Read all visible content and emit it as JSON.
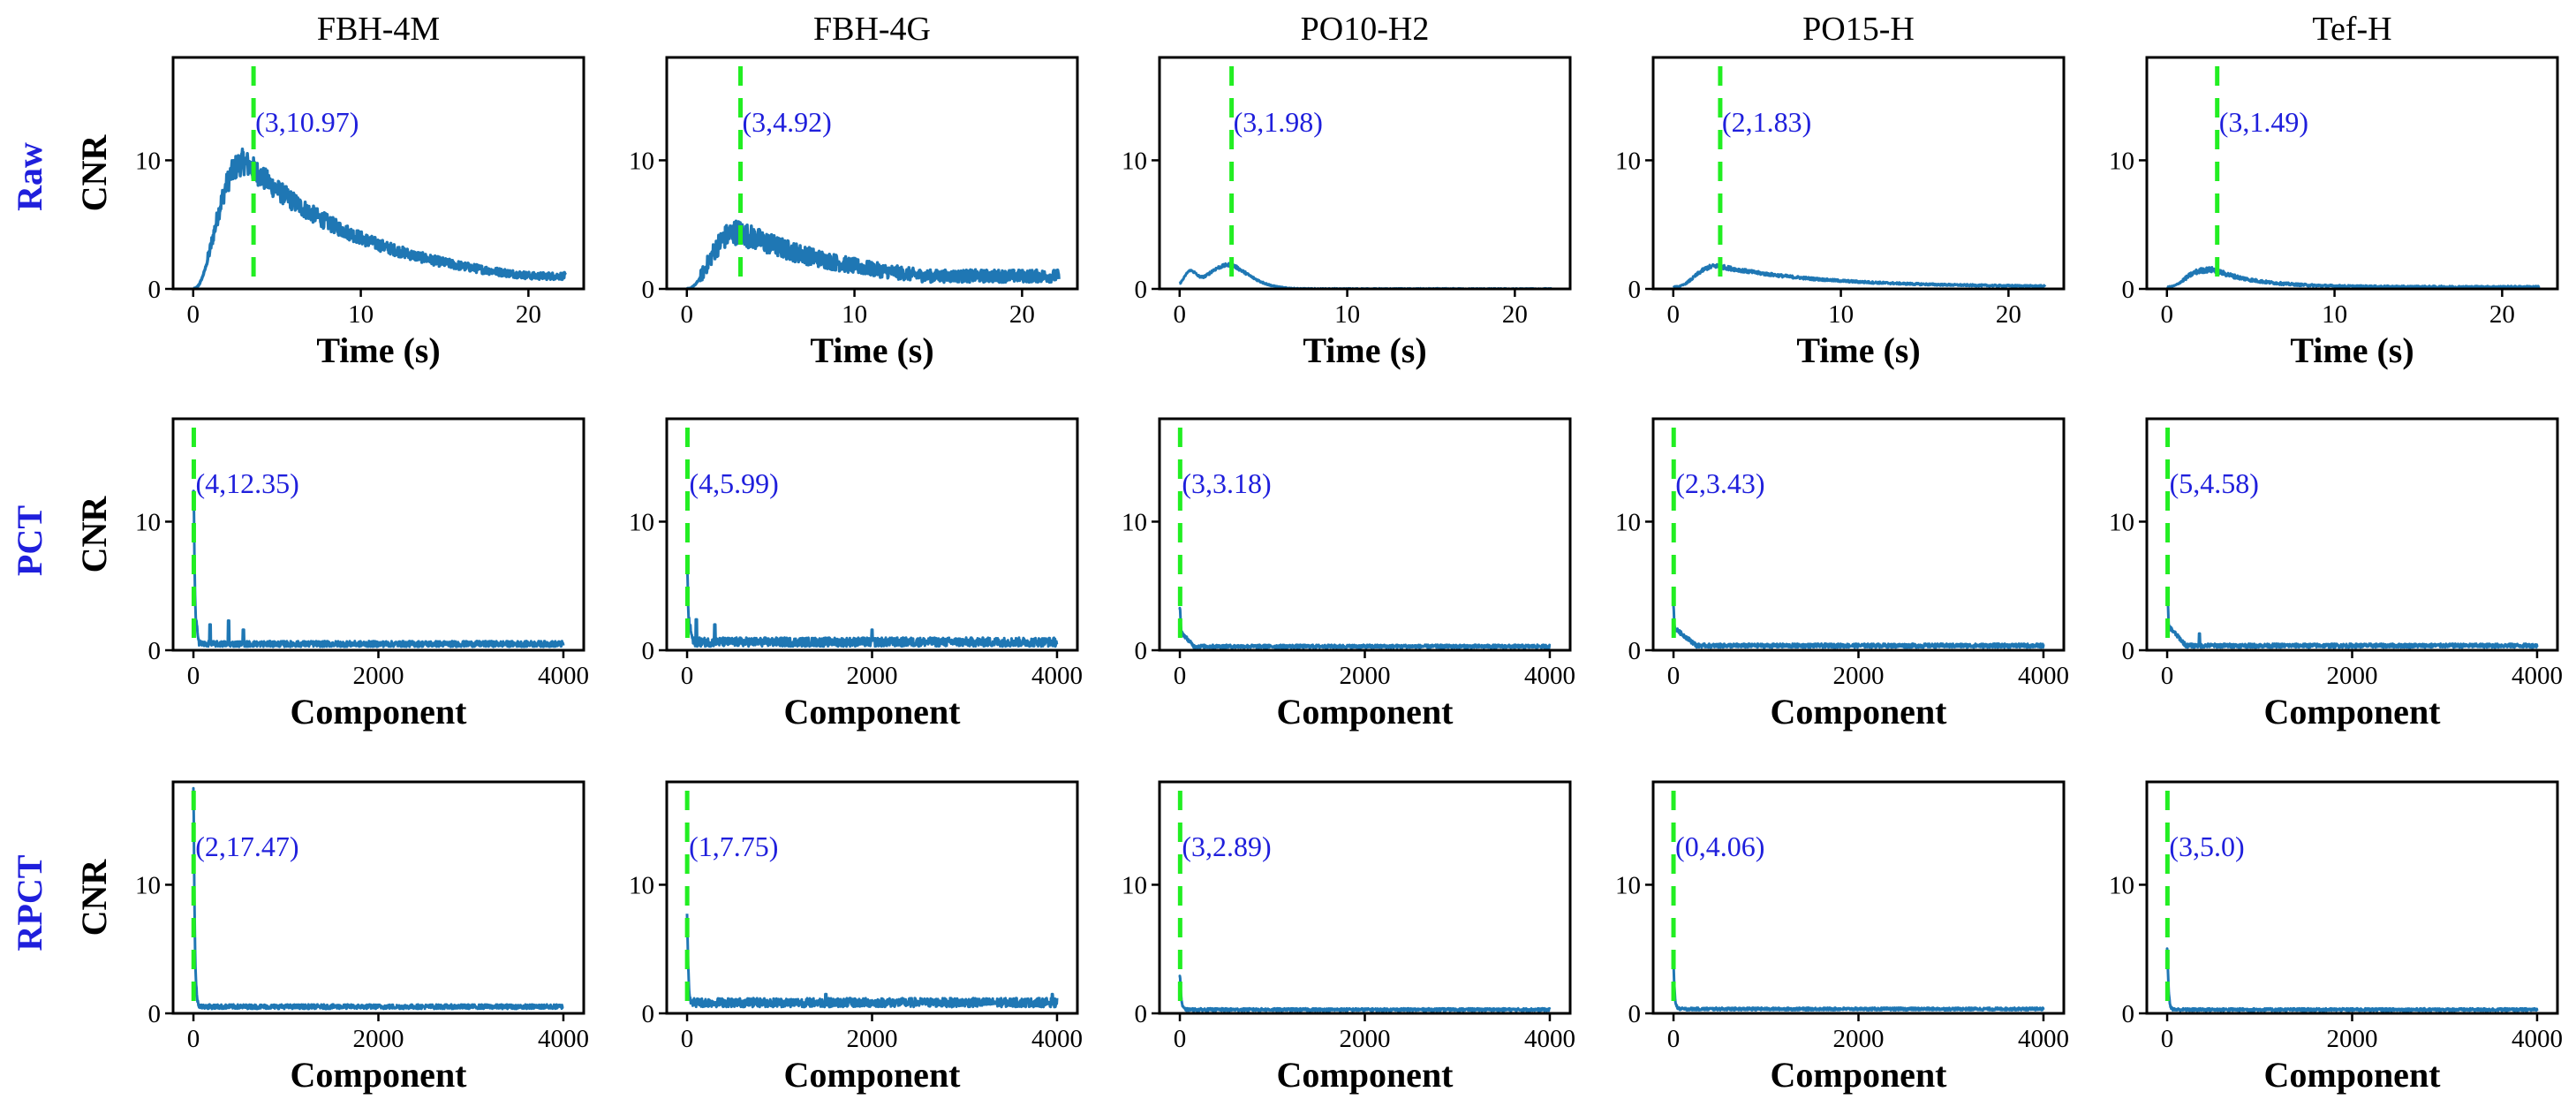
{
  "figure": {
    "column_titles": [
      "FBH-4M",
      "FBH-4G",
      "PO10-H2",
      "PO15-H",
      "Tef-H"
    ],
    "row_labels": [
      "Raw",
      "PCT",
      "RPCT"
    ],
    "ylabel": "CNR",
    "colors": {
      "trace": "#1f77b4",
      "marker": "#22ee22",
      "row_label": "#1f1fdc",
      "annotation": "#1f1fdc"
    }
  },
  "chart_data": [
    {
      "type": "line",
      "row": 0,
      "col": 0,
      "title": "FBH-4M",
      "row_label": "Raw",
      "xlabel": "Time (s)",
      "ylabel": "CNR",
      "xlim": [
        -1.2,
        23.3
      ],
      "ylim": [
        0,
        18
      ],
      "xticks": [
        0,
        10,
        20
      ],
      "xtick_labels": [
        "0",
        "10",
        "20"
      ],
      "yticks": [
        0,
        10
      ],
      "ytick_labels": [
        "0",
        "10"
      ],
      "marker_x": 3.6,
      "annotation": "(3,10.97)",
      "peak": 10.97,
      "shape": "slow",
      "noise": 0.9,
      "noise_tail": 0.4,
      "onset": 0.3,
      "tail_end": 1.0
    },
    {
      "type": "line",
      "row": 0,
      "col": 1,
      "title": "FBH-4G",
      "row_label": "Raw",
      "xlabel": "Time (s)",
      "ylabel": "CNR",
      "xlim": [
        -1.2,
        23.3
      ],
      "ylim": [
        0,
        18
      ],
      "xticks": [
        0,
        10,
        20
      ],
      "xtick_labels": [
        "0",
        "10",
        "20"
      ],
      "yticks": [
        0,
        10
      ],
      "ytick_labels": [
        "0",
        "10"
      ],
      "marker_x": 3.2,
      "annotation": "(3,4.92)",
      "peak": 4.92,
      "shape": "slow",
      "noise": 0.7,
      "noise_tail": 0.7,
      "onset": 0.3,
      "tail_end": 1.0
    },
    {
      "type": "line",
      "row": 0,
      "col": 2,
      "title": "PO10-H2",
      "row_label": "Raw",
      "xlabel": "Time (s)",
      "ylabel": "CNR",
      "xlim": [
        -1.2,
        23.3
      ],
      "ylim": [
        0,
        18
      ],
      "xticks": [
        0,
        10,
        20
      ],
      "xtick_labels": [
        "0",
        "10",
        "20"
      ],
      "yticks": [
        0,
        10
      ],
      "ytick_labels": [
        "0",
        "10"
      ],
      "marker_x": 3.1,
      "annotation": "(3,1.98)",
      "peak": 1.98,
      "shape": "fast_dip",
      "noise": 0.1,
      "noise_tail": 0.08,
      "onset": 0.0,
      "tail_end": 0.1
    },
    {
      "type": "line",
      "row": 0,
      "col": 3,
      "title": "PO15-H",
      "row_label": "Raw",
      "xlabel": "Time (s)",
      "ylabel": "CNR",
      "xlim": [
        -1.2,
        23.3
      ],
      "ylim": [
        0,
        18
      ],
      "xticks": [
        0,
        10,
        20
      ],
      "xtick_labels": [
        "0",
        "10",
        "20"
      ],
      "yticks": [
        0,
        10
      ],
      "ytick_labels": [
        "0",
        "10"
      ],
      "marker_x": 2.8,
      "annotation": "(2,1.83)",
      "peak": 1.83,
      "shape": "medium",
      "noise": 0.12,
      "noise_tail": 0.1,
      "onset": 0.0,
      "tail_end": 0.2
    },
    {
      "type": "line",
      "row": 0,
      "col": 4,
      "title": "Tef-H",
      "row_label": "Raw",
      "xlabel": "Time (s)",
      "ylabel": "CNR",
      "xlim": [
        -1.2,
        23.3
      ],
      "ylim": [
        0,
        18
      ],
      "xticks": [
        0,
        10,
        20
      ],
      "xtick_labels": [
        "0",
        "10",
        "20"
      ],
      "yticks": [
        0,
        10
      ],
      "ytick_labels": [
        "0",
        "10"
      ],
      "marker_x": 3.0,
      "annotation": "(3,1.49)",
      "peak": 1.49,
      "shape": "fast",
      "noise": 0.15,
      "noise_tail": 0.12,
      "onset": 0.0,
      "tail_end": 0.25
    },
    {
      "type": "line",
      "row": 1,
      "col": 0,
      "title": "FBH-4M",
      "row_label": "PCT",
      "xlabel": "Component",
      "ylabel": "CNR",
      "xlim": [
        -220,
        4220
      ],
      "ylim": [
        0,
        18
      ],
      "xticks": [
        0,
        2000,
        4000
      ],
      "xtick_labels": [
        "0",
        "2000",
        "4000"
      ],
      "yticks": [
        0,
        10
      ],
      "ytick_labels": [
        "0",
        "10"
      ],
      "marker_x": 4,
      "annotation": "(4,12.35)",
      "peak": 12.35,
      "decay": 3.0,
      "decay_len": 60,
      "noise": 0.45,
      "baseline": 0.4,
      "spikes": [
        [
          180,
          2.0
        ],
        [
          380,
          2.3
        ],
        [
          540,
          1.6
        ]
      ]
    },
    {
      "type": "line",
      "row": 1,
      "col": 1,
      "title": "FBH-4G",
      "row_label": "PCT",
      "xlabel": "Component",
      "ylabel": "CNR",
      "xlim": [
        -220,
        4220
      ],
      "ylim": [
        0,
        18
      ],
      "xticks": [
        0,
        2000,
        4000
      ],
      "xtick_labels": [
        "0",
        "2000",
        "4000"
      ],
      "yticks": [
        0,
        10
      ],
      "ytick_labels": [
        "0",
        "10"
      ],
      "marker_x": 4,
      "annotation": "(4,5.99)",
      "peak": 5.99,
      "decay": 2.2,
      "decay_len": 60,
      "noise": 0.7,
      "baseline": 0.5,
      "spikes": [
        [
          100,
          2.4
        ],
        [
          300,
          2.0
        ],
        [
          2000,
          1.6
        ]
      ]
    },
    {
      "type": "line",
      "row": 1,
      "col": 2,
      "title": "PO10-H2",
      "row_label": "PCT",
      "xlabel": "Component",
      "ylabel": "CNR",
      "xlim": [
        -220,
        4220
      ],
      "ylim": [
        0,
        18
      ],
      "xticks": [
        0,
        2000,
        4000
      ],
      "xtick_labels": [
        "0",
        "2000",
        "4000"
      ],
      "yticks": [
        0,
        10
      ],
      "ytick_labels": [
        "0",
        "10"
      ],
      "marker_x": 3,
      "annotation": "(3,3.18)",
      "peak": 3.18,
      "decay": 1.2,
      "decay_len": 150,
      "noise": 0.25,
      "baseline": 0.25,
      "spikes": []
    },
    {
      "type": "line",
      "row": 1,
      "col": 3,
      "title": "PO15-H",
      "row_label": "PCT",
      "xlabel": "Component",
      "ylabel": "CNR",
      "xlim": [
        -220,
        4220
      ],
      "ylim": [
        0,
        18
      ],
      "xticks": [
        0,
        2000,
        4000
      ],
      "xtick_labels": [
        "0",
        "2000",
        "4000"
      ],
      "yticks": [
        0,
        10
      ],
      "ytick_labels": [
        "0",
        "10"
      ],
      "marker_x": 2,
      "annotation": "(2,3.43)",
      "peak": 3.43,
      "decay": 1.4,
      "decay_len": 250,
      "noise": 0.3,
      "baseline": 0.3,
      "spikes": []
    },
    {
      "type": "line",
      "row": 1,
      "col": 4,
      "title": "Tef-H",
      "row_label": "PCT",
      "xlabel": "Component",
      "ylabel": "CNR",
      "xlim": [
        -220,
        4220
      ],
      "ylim": [
        0,
        18
      ],
      "xticks": [
        0,
        2000,
        4000
      ],
      "xtick_labels": [
        "0",
        "2000",
        "4000"
      ],
      "yticks": [
        0,
        10
      ],
      "ytick_labels": [
        "0",
        "10"
      ],
      "marker_x": 5,
      "annotation": "(5,4.58)",
      "peak": 4.58,
      "decay": 1.6,
      "decay_len": 200,
      "noise": 0.3,
      "baseline": 0.3,
      "spikes": [
        [
          350,
          1.3
        ]
      ]
    },
    {
      "type": "line",
      "row": 2,
      "col": 0,
      "title": "FBH-4M",
      "row_label": "RPCT",
      "xlabel": "Component",
      "ylabel": "CNR",
      "xlim": [
        -220,
        4220
      ],
      "ylim": [
        0,
        18
      ],
      "xticks": [
        0,
        2000,
        4000
      ],
      "xtick_labels": [
        "0",
        "2000",
        "4000"
      ],
      "yticks": [
        0,
        10
      ],
      "ytick_labels": [
        "0",
        "10"
      ],
      "marker_x": 2,
      "annotation": "(2,17.47)",
      "peak": 17.47,
      "decay": 0.8,
      "decay_len": 30,
      "noise": 0.35,
      "baseline": 0.45,
      "spikes": []
    },
    {
      "type": "line",
      "row": 2,
      "col": 1,
      "title": "FBH-4G",
      "row_label": "RPCT",
      "xlabel": "Component",
      "ylabel": "CNR",
      "xlim": [
        -220,
        4220
      ],
      "ylim": [
        0,
        18
      ],
      "xticks": [
        0,
        2000,
        4000
      ],
      "xtick_labels": [
        "0",
        "2000",
        "4000"
      ],
      "yticks": [
        0,
        10
      ],
      "ytick_labels": [
        "0",
        "10"
      ],
      "marker_x": 1,
      "annotation": "(1,7.75)",
      "peak": 7.75,
      "decay": 0.8,
      "decay_len": 30,
      "noise": 0.7,
      "baseline": 0.7,
      "spikes": [
        [
          1500,
          1.5
        ],
        [
          3950,
          1.5
        ]
      ]
    },
    {
      "type": "line",
      "row": 2,
      "col": 2,
      "title": "PO10-H2",
      "row_label": "RPCT",
      "xlabel": "Component",
      "ylabel": "CNR",
      "xlim": [
        -220,
        4220
      ],
      "ylim": [
        0,
        18
      ],
      "xticks": [
        0,
        2000,
        4000
      ],
      "xtick_labels": [
        "0",
        "2000",
        "4000"
      ],
      "yticks": [
        0,
        10
      ],
      "ytick_labels": [
        "0",
        "10"
      ],
      "marker_x": 3,
      "annotation": "(3,2.89)",
      "peak": 2.89,
      "decay": 0.4,
      "decay_len": 30,
      "noise": 0.2,
      "baseline": 0.25,
      "spikes": []
    },
    {
      "type": "line",
      "row": 2,
      "col": 3,
      "title": "PO15-H",
      "row_label": "RPCT",
      "xlabel": "Component",
      "ylabel": "CNR",
      "xlim": [
        -220,
        4220
      ],
      "ylim": [
        0,
        18
      ],
      "xticks": [
        0,
        2000,
        4000
      ],
      "xtick_labels": [
        "0",
        "2000",
        "4000"
      ],
      "yticks": [
        0,
        10
      ],
      "ytick_labels": [
        "0",
        "10"
      ],
      "marker_x": 0,
      "annotation": "(0,4.06)",
      "peak": 4.06,
      "decay": 0.4,
      "decay_len": 30,
      "noise": 0.2,
      "baseline": 0.3,
      "spikes": []
    },
    {
      "type": "line",
      "row": 2,
      "col": 4,
      "title": "Tef-H",
      "row_label": "RPCT",
      "xlabel": "Component",
      "ylabel": "CNR",
      "xlim": [
        -220,
        4220
      ],
      "ylim": [
        0,
        18
      ],
      "xticks": [
        0,
        2000,
        4000
      ],
      "xtick_labels": [
        "0",
        "2000",
        "4000"
      ],
      "yticks": [
        0,
        10
      ],
      "ytick_labels": [
        "0",
        "10"
      ],
      "marker_x": 3,
      "annotation": "(3,5.0)",
      "peak": 5.0,
      "decay": 0.4,
      "decay_len": 30,
      "noise": 0.2,
      "baseline": 0.25,
      "spikes": []
    }
  ]
}
